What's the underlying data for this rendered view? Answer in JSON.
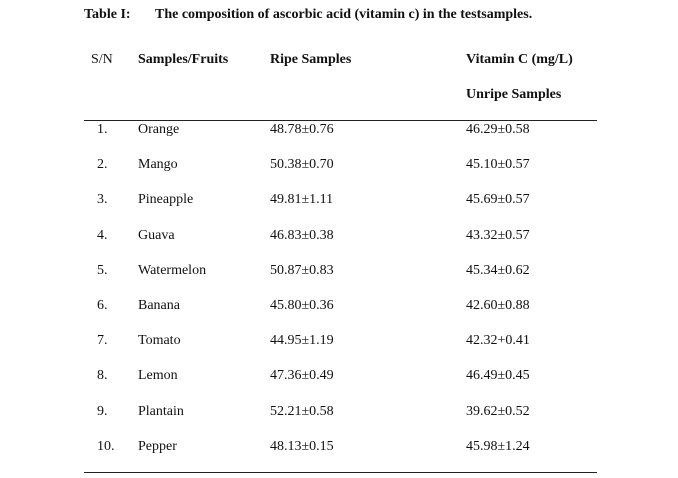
{
  "table": {
    "caption_label": "Table I:",
    "caption_text": "The composition of ascorbic acid (vitamin c) in the testsamples.",
    "headers": {
      "sn": "S/N",
      "fruit": "Samples/Fruits",
      "ripe": "Ripe Samples",
      "vitc": "Vitamin  C  (mg/L)",
      "unripe": "Unripe Samples"
    },
    "rows": [
      {
        "sn": "1.",
        "fruit": "Orange",
        "ripe": "48.78±0.76",
        "unripe": "46.29±0.58"
      },
      {
        "sn": "2.",
        "fruit": "Mango",
        "ripe": "50.38±0.70",
        "unripe": "45.10±0.57"
      },
      {
        "sn": "3.",
        "fruit": "Pineapple",
        "ripe": "49.81±1.11",
        "unripe": "45.69±0.57"
      },
      {
        "sn": "4.",
        "fruit": "Guava",
        "ripe": "46.83±0.38",
        "unripe": "43.32±0.57"
      },
      {
        "sn": "5.",
        "fruit": "Watermelon",
        "ripe": "50.87±0.83",
        "unripe": "45.34±0.62"
      },
      {
        "sn": "6.",
        "fruit": "Banana",
        "ripe": "45.80±0.36",
        "unripe": "42.60±0.88"
      },
      {
        "sn": "7.",
        "fruit": "Tomato",
        "ripe": "44.95±1.19",
        "unripe": "42.32+0.41"
      },
      {
        "sn": "8.",
        "fruit": "Lemon",
        "ripe": "47.36±0.49",
        "unripe": "46.49±0.45"
      },
      {
        "sn": "9.",
        "fruit": "Plantain",
        "ripe": "52.21±0.58",
        "unripe": "39.62±0.52"
      },
      {
        "sn": "10.",
        "fruit": "Pepper",
        "ripe": "48.13±0.15",
        "unripe": "45.98±1.24"
      }
    ]
  }
}
